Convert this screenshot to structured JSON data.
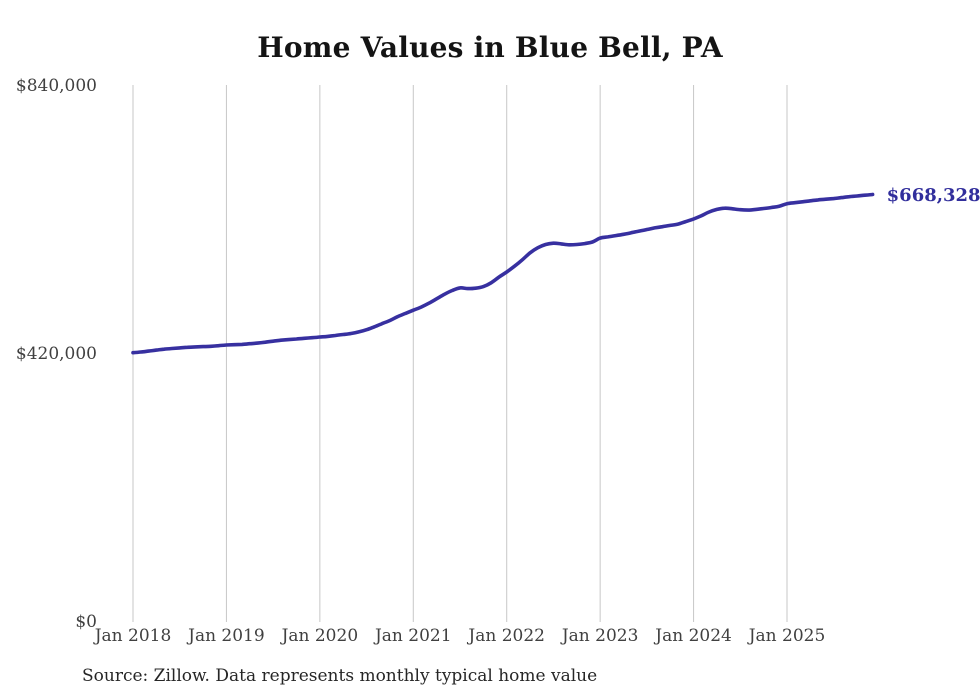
{
  "title": "Home Values in Blue Bell, PA",
  "source_note": "Source: Zillow. Data represents monthly typical home value",
  "colors": {
    "line": "#3730a0",
    "end_label": "#312e9c",
    "grid": "#c7c7c7",
    "title_text": "#141414",
    "axis_text": "#404040",
    "source_text": "#262626",
    "background": "#ffffff"
  },
  "chart_data": {
    "type": "line",
    "title": "Home Values in Blue Bell, PA",
    "xlabel": "",
    "ylabel": "",
    "x_start": "2018-01",
    "x_interval": "monthly",
    "x_tick_labels": [
      "Jan 2018",
      "Jan 2019",
      "Jan 2020",
      "Jan 2021",
      "Jan 2022",
      "Jan 2023",
      "Jan 2024",
      "Jan 2025"
    ],
    "y_ticks": [
      {
        "value": 0,
        "label": "$0"
      },
      {
        "value": 420000,
        "label": "$420,000"
      },
      {
        "value": 840000,
        "label": "$840,000"
      }
    ],
    "ylim": [
      0,
      840000
    ],
    "grid": "vertical-yearly",
    "legend_position": "none",
    "last_value": 668328,
    "last_value_label": "$668,328",
    "series": [
      {
        "name": "Monthly typical home value",
        "values": [
          420500,
          421500,
          423000,
          424500,
          426000,
          427000,
          428000,
          429000,
          429500,
          430000,
          430500,
          431500,
          432500,
          433000,
          433500,
          434500,
          435500,
          437000,
          438500,
          440000,
          441000,
          442000,
          443000,
          444000,
          445000,
          446000,
          447500,
          449000,
          450500,
          453000,
          456500,
          461000,
          466000,
          471000,
          477000,
          482000,
          487000,
          492000,
          498000,
          505000,
          512000,
          518000,
          522000,
          521000,
          521500,
          524000,
          530000,
          539000,
          547000,
          556000,
          566000,
          577000,
          585000,
          590000,
          592000,
          591000,
          589500,
          590000,
          591500,
          594000,
          600000,
          602000,
          604000,
          606000,
          608500,
          611000,
          613500,
          616000,
          618000,
          620000,
          622000,
          626000,
          630000,
          635000,
          641000,
          645000,
          647000,
          646000,
          644500,
          644000,
          645000,
          646500,
          648000,
          650000,
          654000,
          655500,
          657000,
          658500,
          660000,
          661000,
          662000,
          663500,
          665000,
          666000,
          667300,
          668328
        ]
      }
    ]
  }
}
